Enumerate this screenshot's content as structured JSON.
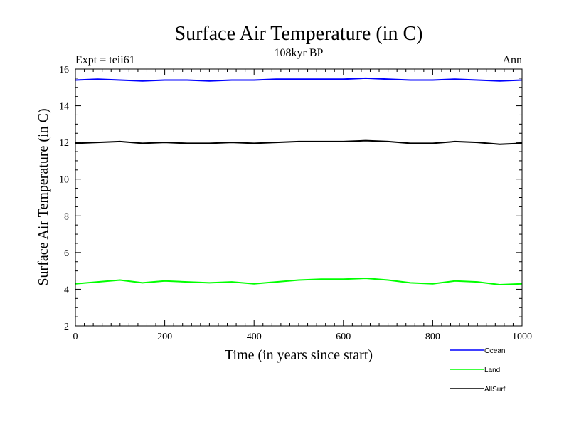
{
  "chart_data": {
    "type": "line",
    "title": "Surface Air Temperature (in C)",
    "subtitle": "108kyr BP",
    "top_left_label": "Expt = teii61",
    "top_right_label": "Ann",
    "xlabel": "Time (in years since start)",
    "ylabel": "Surface Air Temperature (in C)",
    "xlim": [
      0,
      1000
    ],
    "ylim": [
      2,
      16
    ],
    "x_ticks": [
      "0",
      "200",
      "400",
      "600",
      "800",
      "1000"
    ],
    "y_ticks": [
      "2",
      "4",
      "6",
      "8",
      "10",
      "12",
      "14",
      "16"
    ],
    "grid": false,
    "legend_position": "bottom-right, outside plot",
    "series": [
      {
        "name": "Ocean",
        "color": "#0000ff",
        "x": [
          0,
          50,
          100,
          150,
          200,
          250,
          300,
          350,
          400,
          450,
          500,
          550,
          600,
          650,
          700,
          750,
          800,
          850,
          900,
          950,
          1000
        ],
        "values": [
          15.4,
          15.45,
          15.4,
          15.35,
          15.4,
          15.4,
          15.35,
          15.4,
          15.4,
          15.45,
          15.45,
          15.45,
          15.45,
          15.5,
          15.45,
          15.4,
          15.4,
          15.45,
          15.4,
          15.35,
          15.4
        ]
      },
      {
        "name": "Land",
        "color": "#00ff00",
        "x": [
          0,
          50,
          100,
          150,
          200,
          250,
          300,
          350,
          400,
          450,
          500,
          550,
          600,
          650,
          700,
          750,
          800,
          850,
          900,
          950,
          1000
        ],
        "values": [
          4.3,
          4.4,
          4.5,
          4.35,
          4.45,
          4.4,
          4.35,
          4.4,
          4.3,
          4.4,
          4.5,
          4.55,
          4.55,
          4.6,
          4.5,
          4.35,
          4.3,
          4.45,
          4.4,
          4.25,
          4.3
        ]
      },
      {
        "name": "AllSurf",
        "color": "#000000",
        "x": [
          0,
          50,
          100,
          150,
          200,
          250,
          300,
          350,
          400,
          450,
          500,
          550,
          600,
          650,
          700,
          750,
          800,
          850,
          900,
          950,
          1000
        ],
        "values": [
          11.95,
          12.0,
          12.05,
          11.95,
          12.0,
          11.95,
          11.95,
          12.0,
          11.95,
          12.0,
          12.05,
          12.05,
          12.05,
          12.1,
          12.05,
          11.95,
          11.95,
          12.05,
          12.0,
          11.9,
          11.95
        ]
      }
    ]
  }
}
